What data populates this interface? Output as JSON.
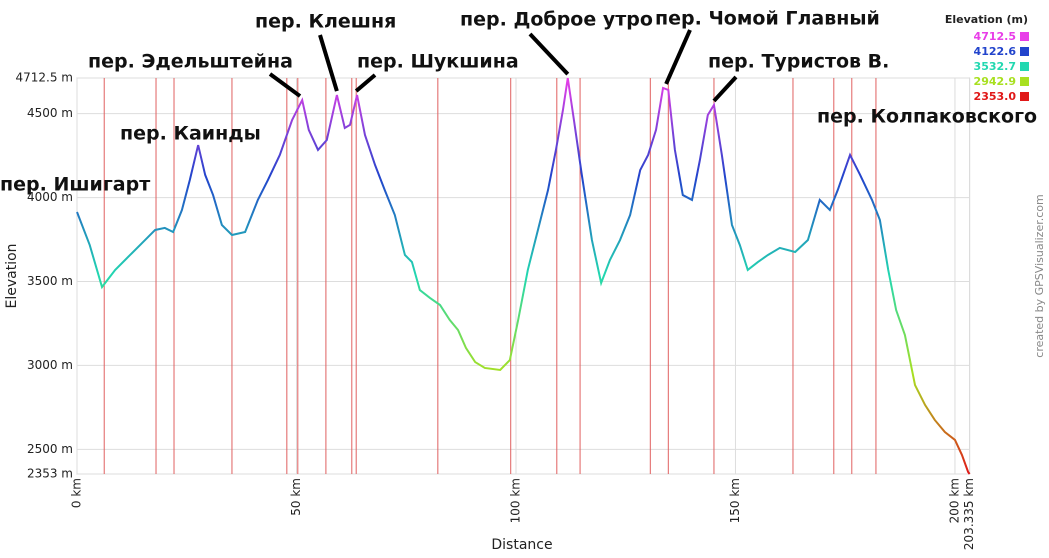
{
  "chart_data": {
    "type": "line",
    "xlabel": "Distance",
    "ylabel": "Elevation",
    "x": [
      0,
      2.9,
      5.7,
      8.7,
      12.1,
      15.5,
      17.8,
      20.0,
      21.9,
      23.9,
      25.7,
      27.6,
      29.2,
      31.0,
      33.0,
      35.3,
      38.3,
      41.2,
      43.5,
      46.2,
      49.0,
      51.3,
      52.8,
      54.9,
      56.9,
      59.2,
      61.0,
      62.2,
      63.8,
      65.6,
      67.9,
      70.1,
      72.4,
      74.7,
      76.3,
      78.1,
      80.4,
      82.7,
      84.9,
      86.8,
      88.6,
      90.7,
      92.9,
      96.4,
      98.6,
      100.5,
      102.7,
      105.0,
      107.3,
      109.1,
      110.7,
      111.8,
      113.2,
      115.0,
      117.3,
      119.4,
      121.4,
      123.7,
      126.0,
      128.3,
      130.1,
      131.9,
      133.5,
      134.7,
      136.2,
      138.0,
      140.1,
      141.9,
      143.7,
      145.1,
      146.9,
      149.2,
      151.0,
      152.8,
      155.1,
      157.4,
      160.1,
      163.6,
      166.5,
      169.2,
      171.5,
      173.3,
      176.1,
      178.4,
      181.1,
      182.9,
      184.8,
      186.6,
      188.6,
      190.9,
      193.2,
      195.4,
      197.7,
      200.0,
      201.6,
      203.0,
      203.335
    ],
    "series": [
      {
        "values": [
          3914,
          3717,
          3467,
          3569,
          3658,
          3747,
          3807,
          3819,
          3795,
          3926,
          4105,
          4313,
          4135,
          4015,
          3837,
          3777,
          3795,
          3986,
          4105,
          4254,
          4462,
          4581,
          4403,
          4284,
          4343,
          4611,
          4415,
          4433,
          4611,
          4373,
          4194,
          4045,
          3896,
          3658,
          3616,
          3449,
          3402,
          3360,
          3271,
          3211,
          3104,
          3020,
          2985,
          2973,
          3032,
          3271,
          3569,
          3807,
          4045,
          4284,
          4522,
          4712,
          4462,
          4135,
          3747,
          3491,
          3628,
          3747,
          3896,
          4164,
          4254,
          4403,
          4653,
          4641,
          4284,
          4015,
          3986,
          4224,
          4492,
          4552,
          4254,
          3837,
          3717,
          3569,
          3616,
          3658,
          3700,
          3676,
          3747,
          3986,
          3926,
          4045,
          4254,
          4135,
          3986,
          3866,
          3569,
          3330,
          3181,
          2883,
          2764,
          2675,
          2603,
          2556,
          2466,
          2365,
          2353
        ]
      }
    ],
    "xlim": [
      0,
      203.335
    ],
    "xticks": [
      {
        "value": 0,
        "label": "0 km"
      },
      {
        "value": 50,
        "label": "50 km"
      },
      {
        "value": 100,
        "label": "100 km"
      },
      {
        "value": 150,
        "label": "150 km"
      },
      {
        "value": 200,
        "label": "200 km"
      },
      {
        "value": 203.335,
        "label": "203.335 km"
      }
    ],
    "ylim": [
      2353,
      4712.5
    ],
    "yticks": [
      {
        "value": 2353,
        "label": "2353 m"
      },
      {
        "value": 2500,
        "label": "2500 m"
      },
      {
        "value": 3000,
        "label": "3000 m"
      },
      {
        "value": 3500,
        "label": "3500 m"
      },
      {
        "value": 4000,
        "label": "4000 m"
      },
      {
        "value": 4500,
        "label": "4500 m"
      },
      {
        "value": 4712.5,
        "label": "4712.5 m"
      }
    ],
    "grid": true,
    "waypoints": [
      6.2,
      18.0,
      22.1,
      35.3,
      47.8,
      50.3,
      56.7,
      62.6,
      63.6,
      82.2,
      98.8,
      109.3,
      114.6,
      130.6,
      134.7,
      145.1,
      163.1,
      172.4,
      176.5,
      182.0
    ],
    "waypoint_color": "#e06060",
    "legend": {
      "title": "Elevation (m)",
      "entries": [
        {
          "value": 4712.5,
          "color": "#e83ee8"
        },
        {
          "value": 4122.6,
          "color": "#2244cc"
        },
        {
          "value": 3532.7,
          "color": "#22d8b0"
        },
        {
          "value": 2942.9,
          "color": "#a8e020"
        },
        {
          "value": 2353,
          "label": "2353.0",
          "color": "#e01818"
        }
      ]
    },
    "annotations": [
      {
        "text": "пер. Ишигарт"
      },
      {
        "text": "пер. Каинды"
      },
      {
        "text": "пер. Эдельштейна",
        "x": 50.8,
        "y": 4581
      },
      {
        "text": "пер. Клешня",
        "x": 59.2,
        "y": 4611
      },
      {
        "text": "пер. Шукшина",
        "x": 63.6,
        "y": 4611
      },
      {
        "text": "пер. Доброе утро",
        "x": 111.8,
        "y": 4712
      },
      {
        "text": "пер. Чомой Главный",
        "x": 134.2,
        "y": 4653
      },
      {
        "text": "пер. Туристов В.",
        "x": 145.1,
        "y": 4552
      },
      {
        "text": "пер. Колпаковского"
      }
    ],
    "credit": "created by GPSVisualizer.com"
  }
}
